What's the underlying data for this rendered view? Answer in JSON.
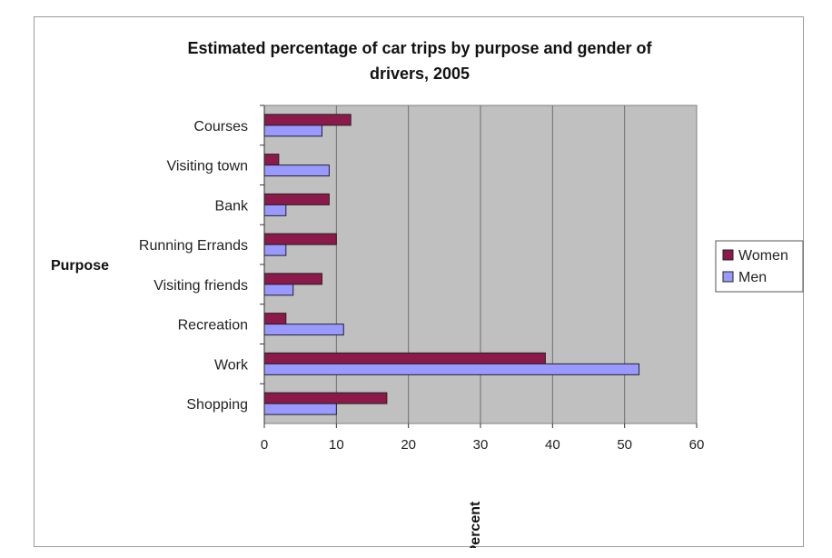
{
  "chart_data": {
    "type": "bar",
    "orientation": "horizontal",
    "title": "Estimated percentage of car trips by purpose and gender of drivers, 2005",
    "title_lines": [
      "Estimated percentage of car trips by purpose and gender of",
      "drivers, 2005"
    ],
    "xlabel": "Percent",
    "ylabel": "Purpose",
    "categories": [
      "Courses",
      "Visiting town",
      "Bank",
      "Running Errands",
      "Visiting friends",
      "Recreation",
      "Work",
      "Shopping"
    ],
    "series": [
      {
        "name": "Women",
        "color": "#8b1a4a",
        "values": [
          12,
          2,
          9,
          10,
          8,
          3,
          39,
          17
        ]
      },
      {
        "name": "Men",
        "color": "#9999ff",
        "values": [
          8,
          9,
          3,
          3,
          4,
          11,
          52,
          10
        ]
      }
    ],
    "xlim": [
      0,
      60
    ],
    "xticks": [
      0,
      10,
      20,
      30,
      40,
      50,
      60
    ],
    "grid": true,
    "plot_background": "#c0c0c0",
    "legend_position": "right"
  }
}
